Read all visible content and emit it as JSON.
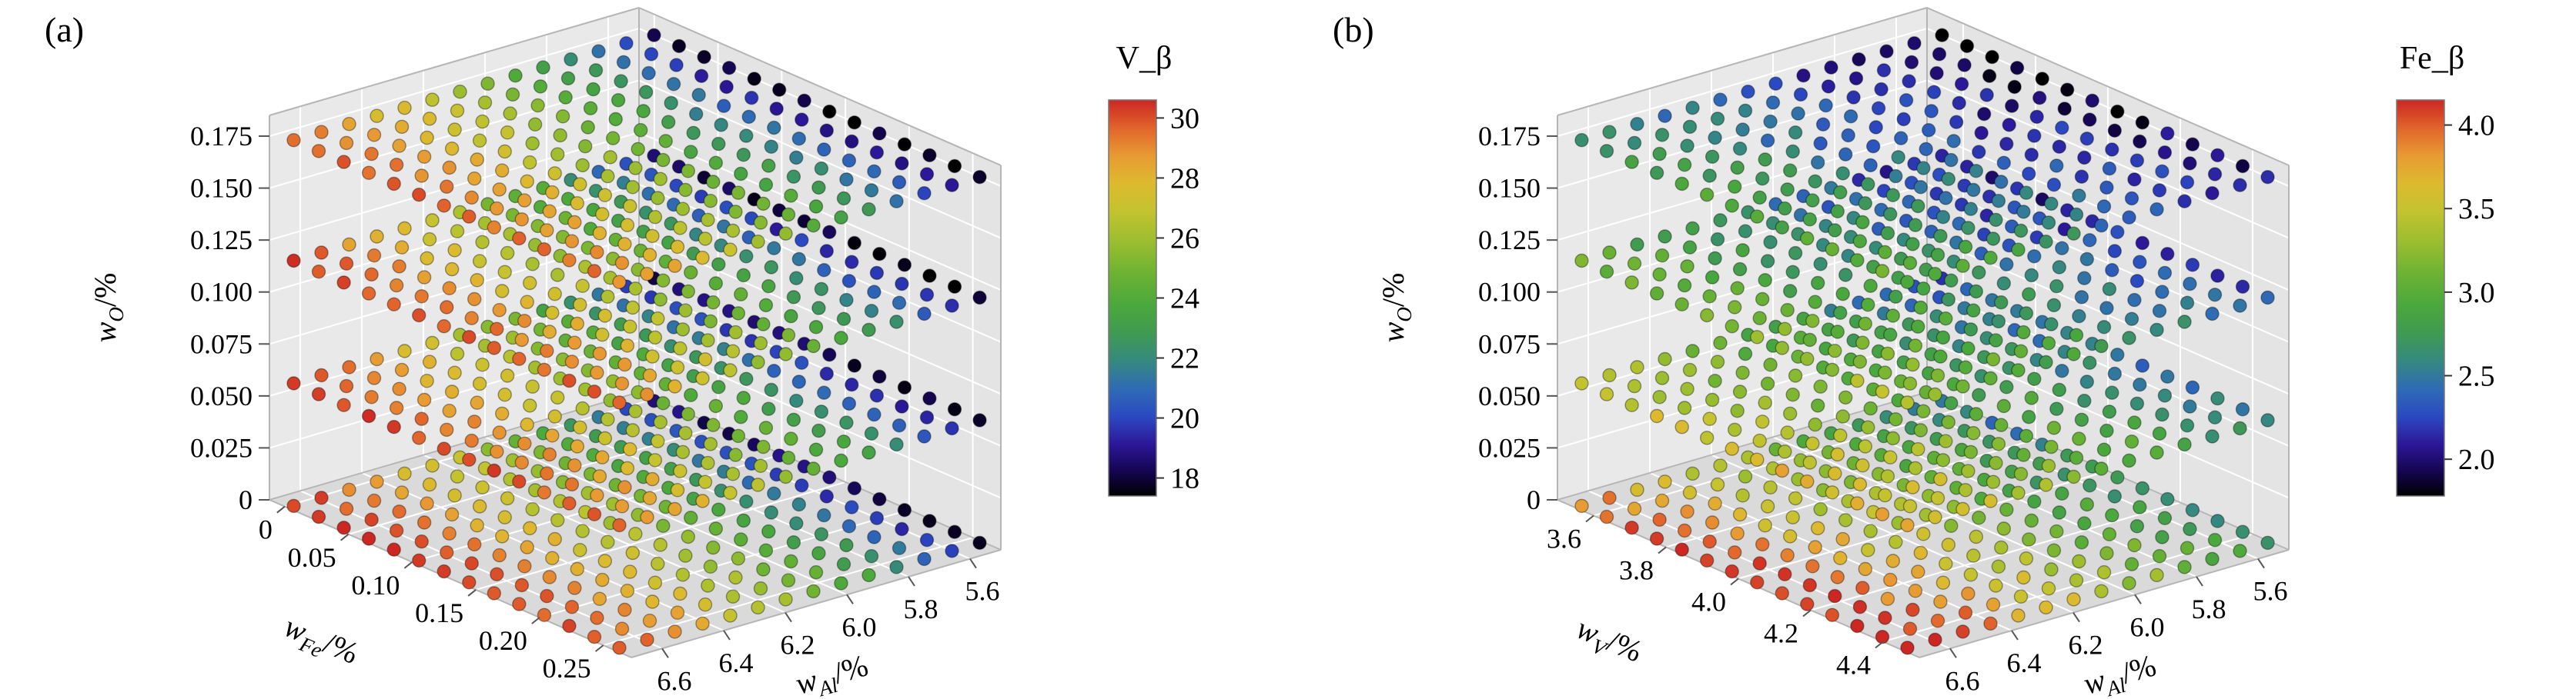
{
  "page": {
    "background": "#ffffff"
  },
  "colormap": {
    "name": "spectral-like",
    "stops": [
      [
        0.0,
        "#000000"
      ],
      [
        0.06,
        "#14054d"
      ],
      [
        0.13,
        "#2c1798"
      ],
      [
        0.2,
        "#2b49c1"
      ],
      [
        0.27,
        "#2f6bb5"
      ],
      [
        0.34,
        "#35897f"
      ],
      [
        0.41,
        "#3f9a52"
      ],
      [
        0.48,
        "#4aa83c"
      ],
      [
        0.56,
        "#6cb233"
      ],
      [
        0.64,
        "#9abd2f"
      ],
      [
        0.72,
        "#c4c32f"
      ],
      [
        0.79,
        "#ddb92f"
      ],
      [
        0.86,
        "#e89a33"
      ],
      [
        0.93,
        "#e1632c"
      ],
      [
        1.0,
        "#cc2723"
      ]
    ]
  },
  "panes": {
    "wall_left": "#e9e9e9",
    "wall_right": "#e4e4e4",
    "floor": "#dadada",
    "grid": "#ffffff",
    "edge": "#b5b5b5"
  },
  "chart_data": [
    {
      "type": "scatter3d",
      "panel_label": "(a)",
      "z_axis": {
        "label": {
          "main": "w",
          "sub": "O",
          "unit": "/%"
        },
        "ticks": [
          0,
          0.025,
          0.05,
          0.075,
          0.1,
          0.125,
          0.15,
          0.175
        ],
        "tick_labels": [
          "0",
          "0.025",
          "0.050",
          "0.075",
          "0.100",
          "0.125",
          "0.150",
          "0.175"
        ],
        "max": 0.185
      },
      "left_axis": {
        "label": {
          "main": "w",
          "sub": "Fe",
          "unit": "/%"
        },
        "ticks": [
          0,
          0.05,
          0.1,
          0.15,
          0.2,
          0.25
        ],
        "tick_labels": [
          "0",
          "0.05",
          "0.10",
          "0.15",
          "0.20",
          "0.25"
        ],
        "min": -0.012,
        "max": 0.272
      },
      "right_axis": {
        "label": {
          "main": "w",
          "sub": "Al",
          "unit": "/%"
        },
        "ticks": [
          6.6,
          6.4,
          6.2,
          6.0,
          5.8,
          5.6
        ],
        "tick_labels": [
          "6.6",
          "6.4",
          "6.2",
          "6.0",
          "5.8",
          "5.6"
        ],
        "min": 5.5,
        "max": 6.7,
        "reversed": true
      },
      "colorbar": {
        "title": "V_β",
        "ticks": [
          30,
          28,
          26,
          24,
          22,
          20,
          18
        ],
        "tick_labels": [
          "30",
          "28",
          "26",
          "24",
          "22",
          "20",
          "18"
        ],
        "vmin": 17.4,
        "vmax": 30.6
      },
      "layers_w_o": [
        0,
        0.059,
        0.118,
        0.176
      ],
      "rows": 14,
      "al_columns": [
        6.68,
        6.59,
        6.5,
        6.41,
        6.32,
        6.23,
        6.14,
        6.05,
        5.96,
        5.87,
        5.78,
        5.69,
        5.6,
        5.51
      ],
      "values_by_layer": [
        [
          30.2,
          29.6,
          29.0,
          28.3,
          27.6,
          26.9,
          26.2,
          25.4,
          24.6,
          23.7,
          22.6,
          21.4,
          20.0,
          18.4
        ],
        [
          30.0,
          29.4,
          28.8,
          28.1,
          27.4,
          26.7,
          26.0,
          25.2,
          24.4,
          23.5,
          22.4,
          21.2,
          19.8,
          18.2
        ],
        [
          29.8,
          29.2,
          28.6,
          27.9,
          27.2,
          26.5,
          25.8,
          25.0,
          24.2,
          23.3,
          22.2,
          21.0,
          19.6,
          18.0
        ],
        [
          29.6,
          29.0,
          28.4,
          27.7,
          27.0,
          26.3,
          25.6,
          24.8,
          24.0,
          23.1,
          22.0,
          20.8,
          19.4,
          17.8
        ]
      ],
      "front_gradient": -0.8,
      "noise": 0.5
    },
    {
      "type": "scatter3d",
      "panel_label": "(b)",
      "z_axis": {
        "label": {
          "main": "w",
          "sub": "O",
          "unit": "/%"
        },
        "ticks": [
          0,
          0.025,
          0.05,
          0.075,
          0.1,
          0.125,
          0.15,
          0.175
        ],
        "tick_labels": [
          "0",
          "0.025",
          "0.050",
          "0.075",
          "0.100",
          "0.125",
          "0.150",
          "0.175"
        ],
        "max": 0.185
      },
      "left_axis": {
        "label": {
          "main": "w",
          "sub": "V",
          "unit": "/%"
        },
        "ticks": [
          3.6,
          3.8,
          4.0,
          4.2,
          4.4
        ],
        "tick_labels": [
          "3.6",
          "3.8",
          "4.0",
          "4.2",
          "4.4"
        ],
        "min": 3.5,
        "max": 4.5
      },
      "right_axis": {
        "label": {
          "main": "w",
          "sub": "Al",
          "unit": "/%"
        },
        "ticks": [
          6.6,
          6.4,
          6.2,
          6.0,
          5.8,
          5.6
        ],
        "tick_labels": [
          "6.6",
          "6.4",
          "6.2",
          "6.0",
          "5.8",
          "5.6"
        ],
        "min": 5.5,
        "max": 6.7,
        "reversed": true
      },
      "colorbar": {
        "title": "Fe_β",
        "ticks": [
          4.0,
          3.5,
          3.0,
          2.5,
          2.0
        ],
        "tick_labels": [
          "4.0",
          "3.5",
          "3.0",
          "2.5",
          "2.0"
        ],
        "vmin": 1.78,
        "vmax": 4.15
      },
      "layers_w_o": [
        0,
        0.059,
        0.118,
        0.176
      ],
      "rows": 14,
      "al_columns": [
        6.68,
        6.59,
        6.5,
        6.41,
        6.32,
        6.23,
        6.14,
        6.05,
        5.96,
        5.87,
        5.78,
        5.69,
        5.6,
        5.51
      ],
      "values_by_layer": [
        [
          4.1,
          3.98,
          3.86,
          3.74,
          3.62,
          3.51,
          3.4,
          3.29,
          3.18,
          3.07,
          2.96,
          2.85,
          2.74,
          2.63
        ],
        [
          3.62,
          3.52,
          3.43,
          3.34,
          3.25,
          3.16,
          3.07,
          2.98,
          2.89,
          2.8,
          2.71,
          2.62,
          2.53,
          2.44
        ],
        [
          3.22,
          3.13,
          3.05,
          2.97,
          2.89,
          2.81,
          2.73,
          2.65,
          2.57,
          2.49,
          2.41,
          2.33,
          2.25,
          2.17
        ],
        [
          2.92,
          2.84,
          2.76,
          2.68,
          2.6,
          2.52,
          2.45,
          2.38,
          2.31,
          2.24,
          2.17,
          2.1,
          2.01,
          1.9
        ]
      ],
      "front_gradient": 0.3,
      "noise": 0.15
    }
  ]
}
